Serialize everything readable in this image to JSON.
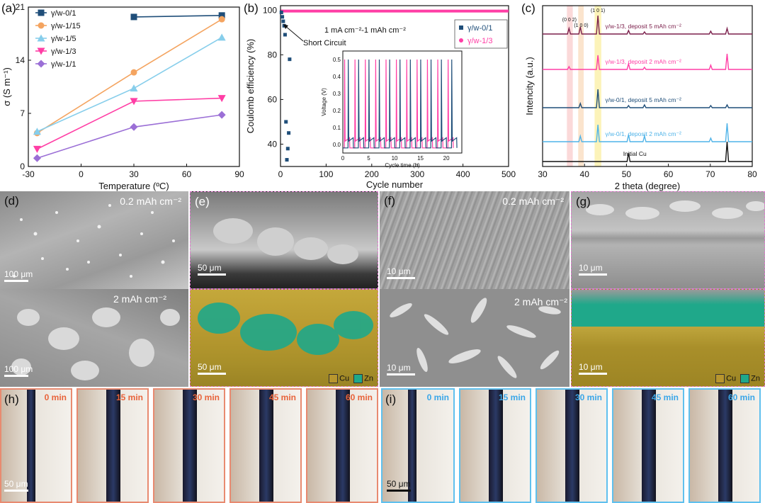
{
  "panels": {
    "a": {
      "label": "(a)",
      "chart_data": {
        "type": "line",
        "xlabel": "Temperature (ºC)",
        "ylabel": "σ (S m⁻¹)",
        "xlim": [
          -30,
          90
        ],
        "ylim": [
          0,
          21
        ],
        "xticks": [
          "-30",
          "0",
          "30",
          "60",
          "90"
        ],
        "yticks": [
          "0",
          "7",
          "14",
          "21"
        ],
        "series": [
          {
            "name": "γ/w-0/1",
            "color": "#1f4e79",
            "marker": "square",
            "x": [
              30,
              80
            ],
            "y": [
              19.7,
              19.9
            ]
          },
          {
            "name": "γ/w-1/15",
            "color": "#f4a460",
            "marker": "circle",
            "x": [
              -25,
              30,
              80
            ],
            "y": [
              4.4,
              12.4,
              19.4
            ]
          },
          {
            "name": "γ/w-1/5",
            "color": "#87ceeb",
            "marker": "triangle-up",
            "x": [
              -25,
              30,
              80
            ],
            "y": [
              4.6,
              10.3,
              17.0
            ]
          },
          {
            "name": "γ/w-1/3",
            "color": "#ff3ea5",
            "marker": "triangle-down",
            "x": [
              -25,
              30,
              80
            ],
            "y": [
              2.3,
              8.6,
              9.0
            ]
          },
          {
            "name": "γ/w-1/1",
            "color": "#9b6fd6",
            "marker": "diamond",
            "x": [
              -25,
              30,
              80
            ],
            "y": [
              1.1,
              5.2,
              6.8
            ]
          }
        ]
      }
    },
    "b": {
      "label": "(b)",
      "chart_data": {
        "type": "scatter",
        "xlabel": "Cycle number",
        "ylabel": "Coulomb efficiency (%)",
        "xlim": [
          0,
          500
        ],
        "ylim": [
          30,
          102
        ],
        "xticks": [
          "0",
          "100",
          "200",
          "300",
          "400",
          "500"
        ],
        "yticks": [
          "40",
          "60",
          "80",
          "100"
        ],
        "condition": "1 mA cm⁻²-1 mAh cm⁻²",
        "annotation": "Short Circuit",
        "series": [
          {
            "name": "γ/w-0/1",
            "color": "#1f4e79",
            "x": [
              2,
              4,
              6,
              8,
              10,
              12,
              14,
              16,
              18,
              20
            ],
            "y": [
              99,
              97,
              95,
              93,
              89,
              50,
              33,
              38,
              45,
              78
            ]
          },
          {
            "name": "γ/w-1/3",
            "color": "#ff3ea5",
            "x_range": [
              1,
              500
            ],
            "y_value": 99.6
          }
        ],
        "inset": {
          "xlabel": "Cycle time (h)",
          "ylabel": "Voltage (V)",
          "xticks": [
            "0",
            "5",
            "10",
            "15",
            "20"
          ],
          "yticks": [
            "0.0",
            "0.1",
            "0.2",
            "0.3",
            "0.4",
            "0.5"
          ]
        }
      }
    },
    "c": {
      "label": "(c)",
      "chart_data": {
        "type": "line",
        "xlabel": "2 theta (degree)",
        "ylabel": "Intencity (a.u.)",
        "xlim": [
          30,
          80
        ],
        "xticks": [
          "30",
          "40",
          "50",
          "60",
          "70",
          "80"
        ],
        "peak_labels": [
          "(0 0 2)",
          "(1 0 0)",
          "(1 0 1)"
        ],
        "series": [
          {
            "name": "γ/w-1/3, deposit 5 mAh cm⁻²",
            "color": "#7b1f4b"
          },
          {
            "name": "γ/w-1/3,  deposit  2 mAh cm⁻²",
            "color": "#ff3ea5"
          },
          {
            "name": "γ/w-0/1, deposit 5 mAh cm⁻²",
            "color": "#1f4e79"
          },
          {
            "name": "γ/w-0/1,  deposit  2 mAh cm⁻²",
            "color": "#4fb3e8"
          },
          {
            "name": "Initial Cu",
            "color": "#111111"
          }
        ]
      }
    },
    "d": {
      "label": "(d)",
      "top_annot": "0.2 mAh cm⁻²",
      "bottom_annot": "2 mAh cm⁻²",
      "scale_top": "100 μm",
      "scale_bottom": "100 μm"
    },
    "e": {
      "label": "(e)",
      "scale_top": "50 μm",
      "scale_bottom": "50 μm",
      "legend_cu": "Cu",
      "legend_zn": "Zn"
    },
    "f": {
      "label": "(f)",
      "top_annot": "0.2 mAh cm⁻²",
      "bottom_annot": "2 mAh cm⁻²",
      "scale_top": "10 μm",
      "scale_bottom": "10 μm"
    },
    "g": {
      "label": "(g)",
      "scale_top": "10 μm",
      "scale_bottom": "10 μm",
      "legend_cu": "Cu",
      "legend_zn": "Zn"
    },
    "h": {
      "label": "(h)",
      "times": [
        "0 min",
        "15 min",
        "30 min",
        "45 min",
        "60 min"
      ],
      "scale": "50 μm",
      "time_color": "#e8633a"
    },
    "i": {
      "label": "(i)",
      "times": [
        "0 min",
        "15 min",
        "30 min",
        "45 min",
        "60 min"
      ],
      "scale": "50 μm",
      "time_color": "#3aa6e8"
    }
  }
}
